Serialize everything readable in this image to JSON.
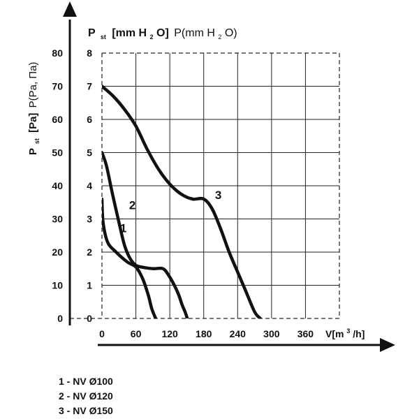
{
  "chart_data": {
    "type": "line",
    "y_axis_title_left": {
      "main": "P",
      "sub": "st",
      "bracket": "[Pa]",
      "extra": "P(Pa, Па)"
    },
    "y_axis_title_top": {
      "main": "P",
      "sub": "st",
      "bracket": "[mm H",
      "sub2": "2",
      "close": "O]",
      "extra": "P(mm H",
      "extra_sub": "2",
      "extra_close": "O)"
    },
    "x_axis_title": {
      "main": "V[m",
      "sup": "3",
      "close": "/h]"
    },
    "x_ticks": [
      "0",
      "60",
      "120",
      "180",
      "240",
      "300",
      "360"
    ],
    "x_tick_values": [
      0,
      60,
      120,
      180,
      240,
      300,
      360
    ],
    "y_ticks_pa": [
      "0",
      "10",
      "20",
      "30",
      "40",
      "50",
      "60",
      "70",
      "80"
    ],
    "y_ticks_mm": [
      "0",
      "1",
      "2",
      "3",
      "4",
      "5",
      "6",
      "7",
      "8"
    ],
    "xlim": [
      0,
      420
    ],
    "ylim_pa": [
      0,
      80
    ],
    "grid": true,
    "series": [
      {
        "label": "1",
        "x": [
          0,
          2,
          10,
          25,
          45,
          60,
          72,
          82,
          88,
          95
        ],
        "y": [
          36,
          29,
          23,
          20,
          17,
          15.5,
          12,
          7,
          3,
          0
        ]
      },
      {
        "label": "2",
        "x": [
          0,
          8,
          18,
          30,
          40,
          50,
          60,
          70,
          80,
          92,
          108,
          118,
          128,
          136,
          142,
          147,
          151
        ],
        "y": [
          50,
          46,
          38,
          29,
          22,
          18,
          16,
          15.5,
          15.2,
          15,
          15,
          13,
          10,
          7,
          4,
          2,
          0
        ]
      },
      {
        "label": "3",
        "x": [
          0,
          20,
          40,
          60,
          80,
          100,
          120,
          140,
          160,
          180,
          195,
          210,
          225,
          240,
          255,
          270,
          280
        ],
        "y": [
          70,
          67,
          63,
          58,
          51,
          45,
          40.5,
          37.5,
          36,
          36,
          33,
          27,
          20,
          14,
          8,
          2,
          0
        ]
      }
    ]
  },
  "legend": [
    "1 - NV Ø100",
    "2 - NV Ø120",
    "3 - NV Ø150"
  ]
}
